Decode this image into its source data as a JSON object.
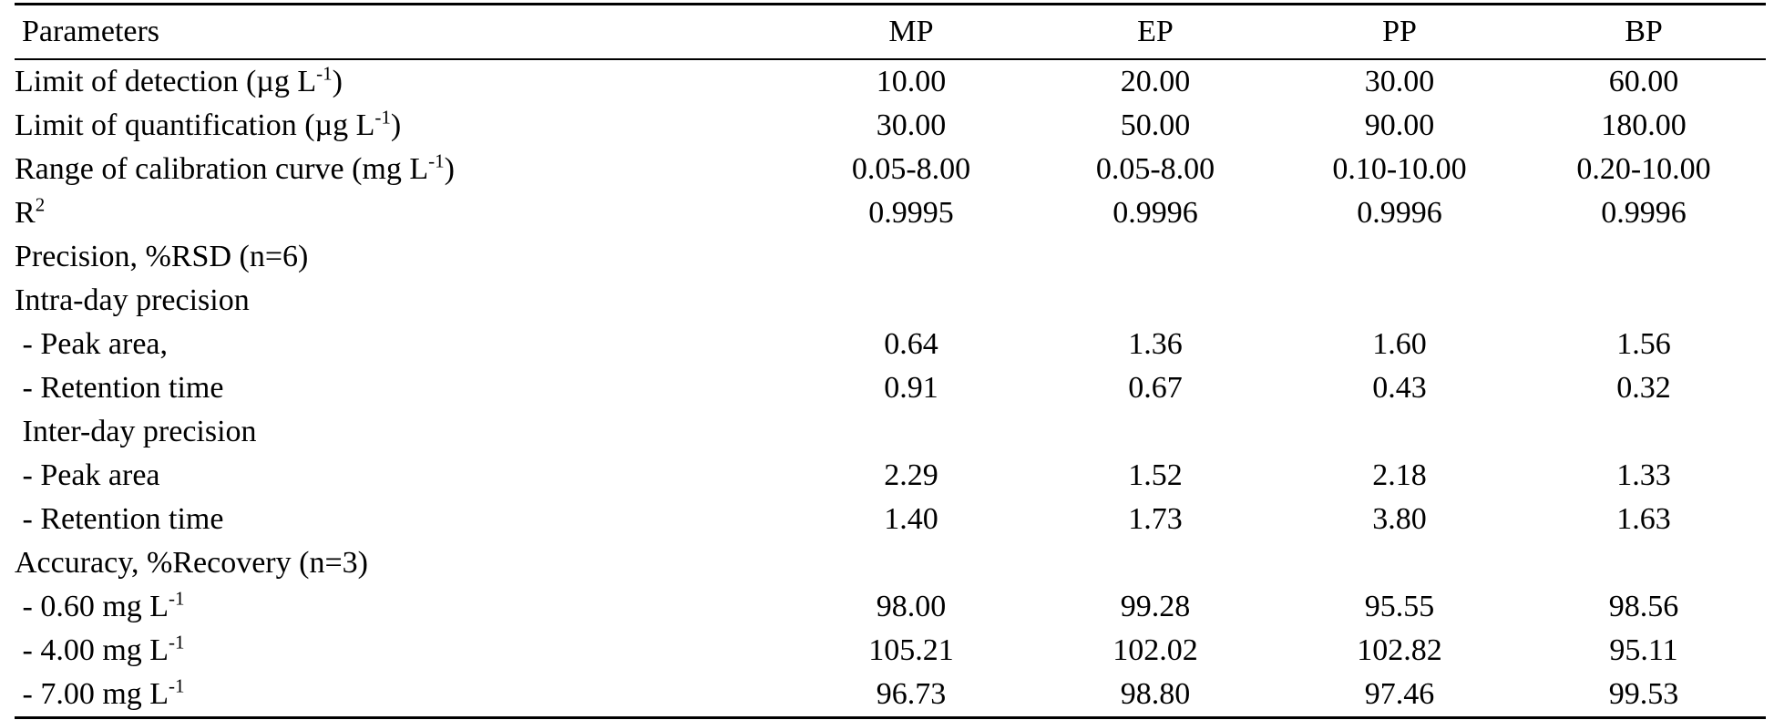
{
  "page": {
    "background_color": "#ffffff",
    "text_color": "#000000",
    "rule_color": "#000000"
  },
  "table": {
    "name": "analytical-method-validation-parameters",
    "columns": [
      {
        "label": "Parameters",
        "align": "left"
      },
      {
        "label": "MP",
        "align": "center"
      },
      {
        "label": "EP",
        "align": "center"
      },
      {
        "label": "PP",
        "align": "center"
      },
      {
        "label": "BP",
        "align": "center"
      }
    ],
    "rows": [
      {
        "label": [
          {
            "t": "Limit of detection (µg L"
          },
          {
            "t": "-1",
            "sup": true
          },
          {
            "t": ")"
          }
        ],
        "values": [
          "10.00",
          "20.00",
          "30.00",
          "60.00"
        ]
      },
      {
        "label": [
          {
            "t": "Limit of quantification (µg L"
          },
          {
            "t": "-1",
            "sup": true
          },
          {
            "t": ")"
          }
        ],
        "values": [
          "30.00",
          "50.00",
          "90.00",
          "180.00"
        ]
      },
      {
        "label": [
          {
            "t": "Range of calibration curve (mg L"
          },
          {
            "t": "-1",
            "sup": true
          },
          {
            "t": ")"
          }
        ],
        "values": [
          "0.05-8.00",
          "0.05-8.00",
          "0.10-10.00",
          "0.20-10.00"
        ]
      },
      {
        "label": [
          {
            "t": "R"
          },
          {
            "t": "2",
            "sup": true
          }
        ],
        "values": [
          "0.9995",
          "0.9996",
          "0.9996",
          "0.9996"
        ]
      },
      {
        "label": [
          {
            "t": "Precision, %RSD (n=6)"
          }
        ],
        "values": [
          "",
          "",
          "",
          ""
        ]
      },
      {
        "label": [
          {
            "t": "Intra-day precision"
          }
        ],
        "values": [
          "",
          "",
          "",
          ""
        ]
      },
      {
        "label": [
          {
            "t": " - Peak area,"
          }
        ],
        "values": [
          "0.64",
          "1.36",
          "1.60",
          "1.56"
        ]
      },
      {
        "label": [
          {
            "t": " - Retention time"
          }
        ],
        "values": [
          "0.91",
          "0.67",
          "0.43",
          "0.32"
        ]
      },
      {
        "label": [
          {
            "t": " Inter-day precision"
          }
        ],
        "values": [
          "",
          "",
          "",
          ""
        ]
      },
      {
        "label": [
          {
            "t": " - Peak area"
          }
        ],
        "values": [
          "2.29",
          "1.52",
          "2.18",
          "1.33"
        ]
      },
      {
        "label": [
          {
            "t": " - Retention time"
          }
        ],
        "values": [
          "1.40",
          "1.73",
          "3.80",
          "1.63"
        ]
      },
      {
        "label": [
          {
            "t": "Accuracy, %Recovery (n=3)"
          }
        ],
        "values": [
          "",
          "",
          "",
          ""
        ]
      },
      {
        "label": [
          {
            "t": " - 0.60 mg L"
          },
          {
            "t": "-1",
            "sup": true
          }
        ],
        "values": [
          "98.00",
          "99.28",
          "95.55",
          "98.56"
        ]
      },
      {
        "label": [
          {
            "t": " - 4.00 mg L"
          },
          {
            "t": "-1",
            "sup": true
          }
        ],
        "values": [
          "105.21",
          "102.02",
          "102.82",
          "95.11"
        ]
      },
      {
        "label": [
          {
            "t": " - 7.00 mg L"
          },
          {
            "t": "-1",
            "sup": true
          }
        ],
        "values": [
          "96.73",
          "98.80",
          "97.46",
          "99.53"
        ]
      }
    ]
  }
}
